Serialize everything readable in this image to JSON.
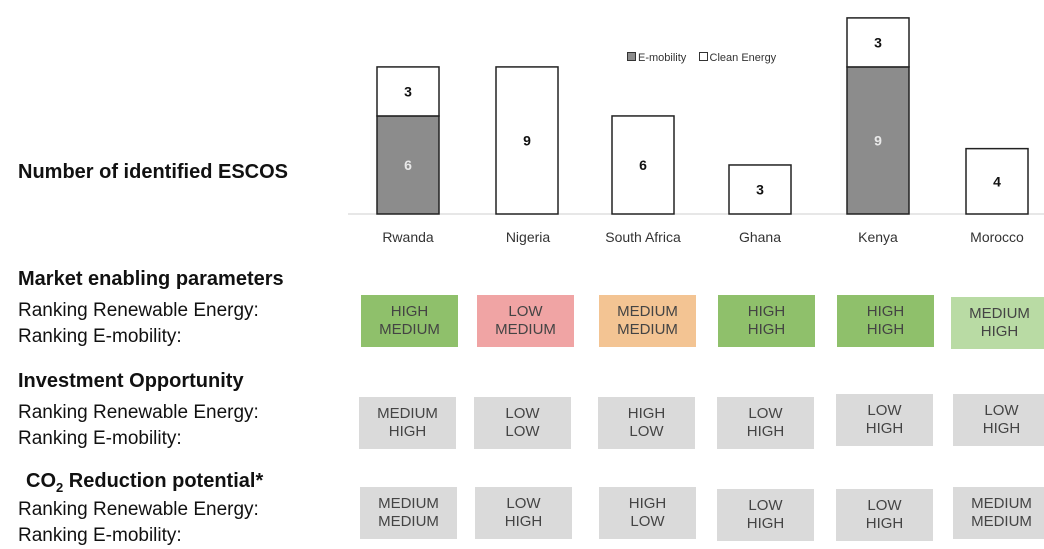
{
  "chart_data": {
    "type": "bar",
    "stacked": true,
    "title": "",
    "ylabel": "",
    "xlabel": "",
    "categories": [
      "Rwanda",
      "Nigeria",
      "South Africa",
      "Ghana",
      "Kenya",
      "Morocco"
    ],
    "series": [
      {
        "name": "E-mobility",
        "values": [
          6,
          0,
          0,
          0,
          9,
          0
        ],
        "color": "#8c8c8c"
      },
      {
        "name": "Clean Energy",
        "values": [
          3,
          9,
          6,
          3,
          3,
          4
        ],
        "color": "#ffffff"
      }
    ],
    "ylim": [
      0,
      12.3
    ],
    "legend_position": "top-center",
    "grid": false
  },
  "labels": {
    "escos_heading": "Number of  identified ESCOS",
    "market_heading": "Market enabling parameters",
    "investment_heading": "Investment Opportunity",
    "co2_heading_pre": "CO",
    "co2_heading_sub": "2",
    "co2_heading_post": " Reduction potential*",
    "ranking_re": "Ranking Renewable Energy:",
    "ranking_em": "Ranking E-mobility:"
  },
  "colors": {
    "high": "#8fc06b",
    "low": "#f0a4a4",
    "medium": "#f3c493",
    "medium_high": "#b9dba4",
    "neutral": "#dadada"
  },
  "market": [
    {
      "re": "HIGH",
      "em": "MEDIUM",
      "color": "#8fc06b"
    },
    {
      "re": "LOW",
      "em": "MEDIUM",
      "color": "#f0a4a4"
    },
    {
      "re": "MEDIUM",
      "em": "MEDIUM",
      "color": "#f3c493"
    },
    {
      "re": "HIGH",
      "em": "HIGH",
      "color": "#8fc06b"
    },
    {
      "re": "HIGH",
      "em": "HIGH",
      "color": "#8fc06b"
    },
    {
      "re": "MEDIUM",
      "em": "HIGH",
      "color": "#b9dba4"
    }
  ],
  "investment": [
    {
      "re": "MEDIUM",
      "em": "HIGH"
    },
    {
      "re": "LOW",
      "em": "LOW"
    },
    {
      "re": "HIGH",
      "em": "LOW"
    },
    {
      "re": "LOW",
      "em": "HIGH"
    },
    {
      "re": "LOW",
      "em": "HIGH"
    },
    {
      "re": "LOW",
      "em": "HIGH"
    }
  ],
  "co2": [
    {
      "re": "MEDIUM",
      "em": "MEDIUM"
    },
    {
      "re": "LOW",
      "em": "HIGH"
    },
    {
      "re": "HIGH",
      "em": "LOW"
    },
    {
      "re": "LOW",
      "em": "HIGH"
    },
    {
      "re": "LOW",
      "em": "HIGH"
    },
    {
      "re": "MEDIUM",
      "em": "MEDIUM"
    }
  ]
}
